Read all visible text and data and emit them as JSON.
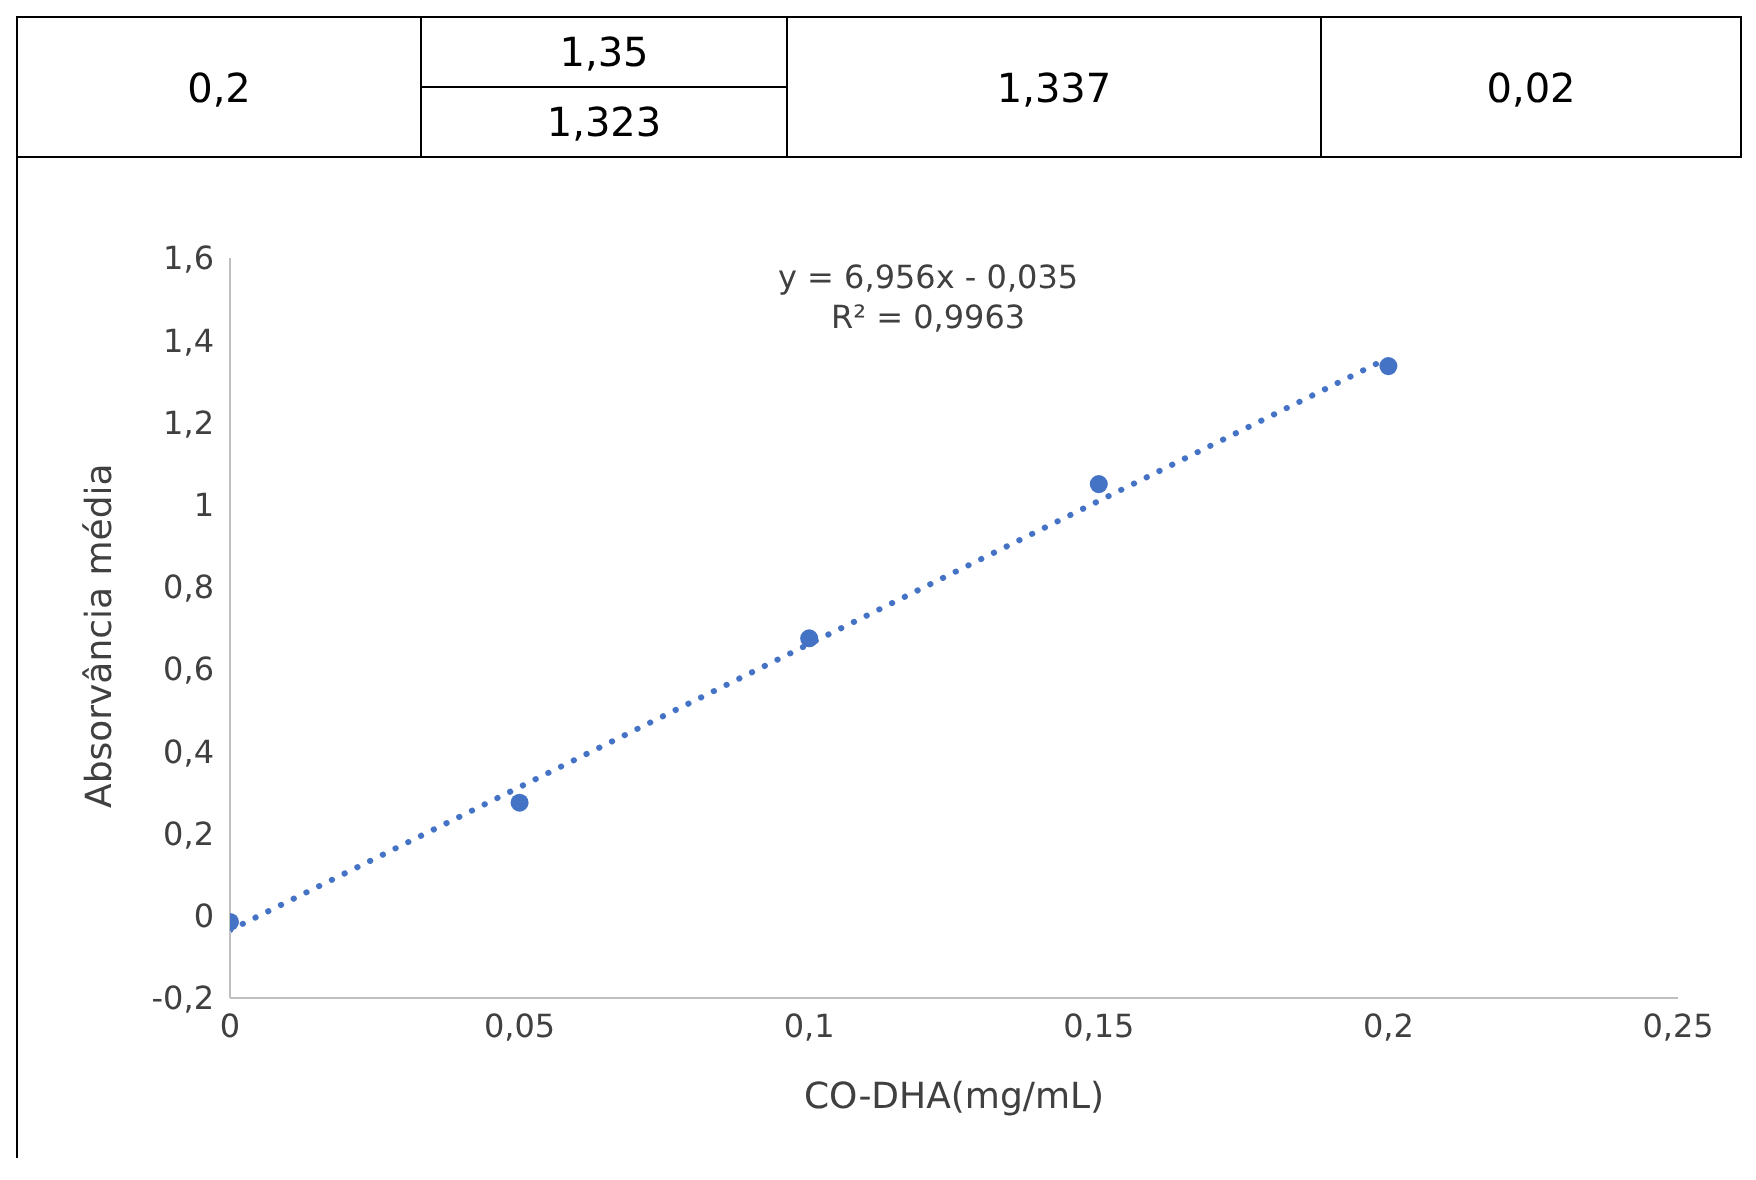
{
  "chart_data": {
    "type": "scatter",
    "xlabel": "CO-DHA(mg/mL)",
    "ylabel": "Absorvância média",
    "x": [
      0,
      0.05,
      0.1,
      0.15,
      0.2
    ],
    "series": [
      {
        "color": "#4472c4",
        "values": [
          -0.015,
          0.275,
          0.675,
          1.05,
          1.337
        ],
        "marker": "circle"
      },
      {
        "type": "line",
        "color": "#4472c4",
        "x": [
          0,
          0.2
        ],
        "values": [
          -0.035,
          1.357
        ],
        "line_style": "dotted",
        "marker": "none"
      }
    ],
    "xlim": [
      0,
      0.25
    ],
    "xticks": [
      0,
      {
        "value": 0.05,
        "label": "0,05"
      },
      {
        "value": 0.1,
        "label": "0,1"
      },
      {
        "value": 0.15,
        "label": "0,15"
      },
      {
        "value": 0.2,
        "label": "0,2"
      },
      {
        "value": 0.25,
        "label": "0,25"
      }
    ],
    "ylim": [
      -0.2,
      1.6
    ],
    "yticks": [
      {
        "value": -0.2,
        "label": "-0,2"
      },
      0,
      {
        "value": 0.2,
        "label": "0,2"
      },
      {
        "value": 0.4,
        "label": "0,4"
      },
      {
        "value": 0.6,
        "label": "0,6"
      },
      {
        "value": 0.8,
        "label": "0,8"
      },
      1,
      {
        "value": 1.2,
        "label": "1,2"
      },
      {
        "value": 1.4,
        "label": "1,4"
      },
      {
        "value": 1.6,
        "label": "1,6"
      }
    ],
    "grid": false,
    "annotations": [
      "0,2",
      "1,35",
      "1,323",
      "1,337",
      "0,02",
      "y = 6,956x - 0,035",
      "R² = 0,9963"
    ]
  }
}
